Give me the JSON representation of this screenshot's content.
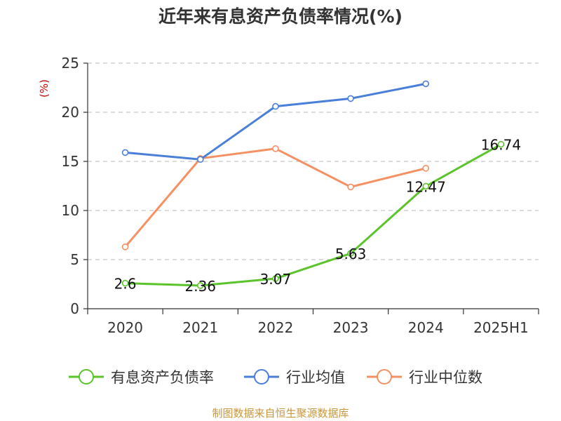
{
  "chart_data": {
    "type": "line",
    "title": "近年来有息资产负债率情况(%)",
    "unit_label": "(%)",
    "categories": [
      "2020",
      "2021",
      "2022",
      "2023",
      "2024",
      "2025H1"
    ],
    "yticks": [
      "0",
      "5",
      "10",
      "15",
      "20",
      "25"
    ],
    "ylim": [
      0,
      25
    ],
    "grid": true,
    "legend_position": "bottom",
    "series": [
      {
        "name": "有息资产负债率",
        "color": "#5bc42b",
        "values": [
          2.6,
          2.36,
          3.07,
          5.63,
          12.47,
          16.74
        ],
        "labels": [
          "2.6",
          "2.36",
          "3.07",
          "5.63",
          "12.47",
          "16.74"
        ]
      },
      {
        "name": "行业均值",
        "color": "#4a7fd9",
        "values": [
          15.9,
          15.2,
          20.6,
          21.4,
          22.9,
          null
        ]
      },
      {
        "name": "行业中位数",
        "color": "#f59062",
        "values": [
          6.3,
          15.3,
          16.3,
          12.4,
          14.3,
          null
        ]
      }
    ]
  },
  "footer": {
    "source": "制图数据来自恒生聚源数据库"
  }
}
